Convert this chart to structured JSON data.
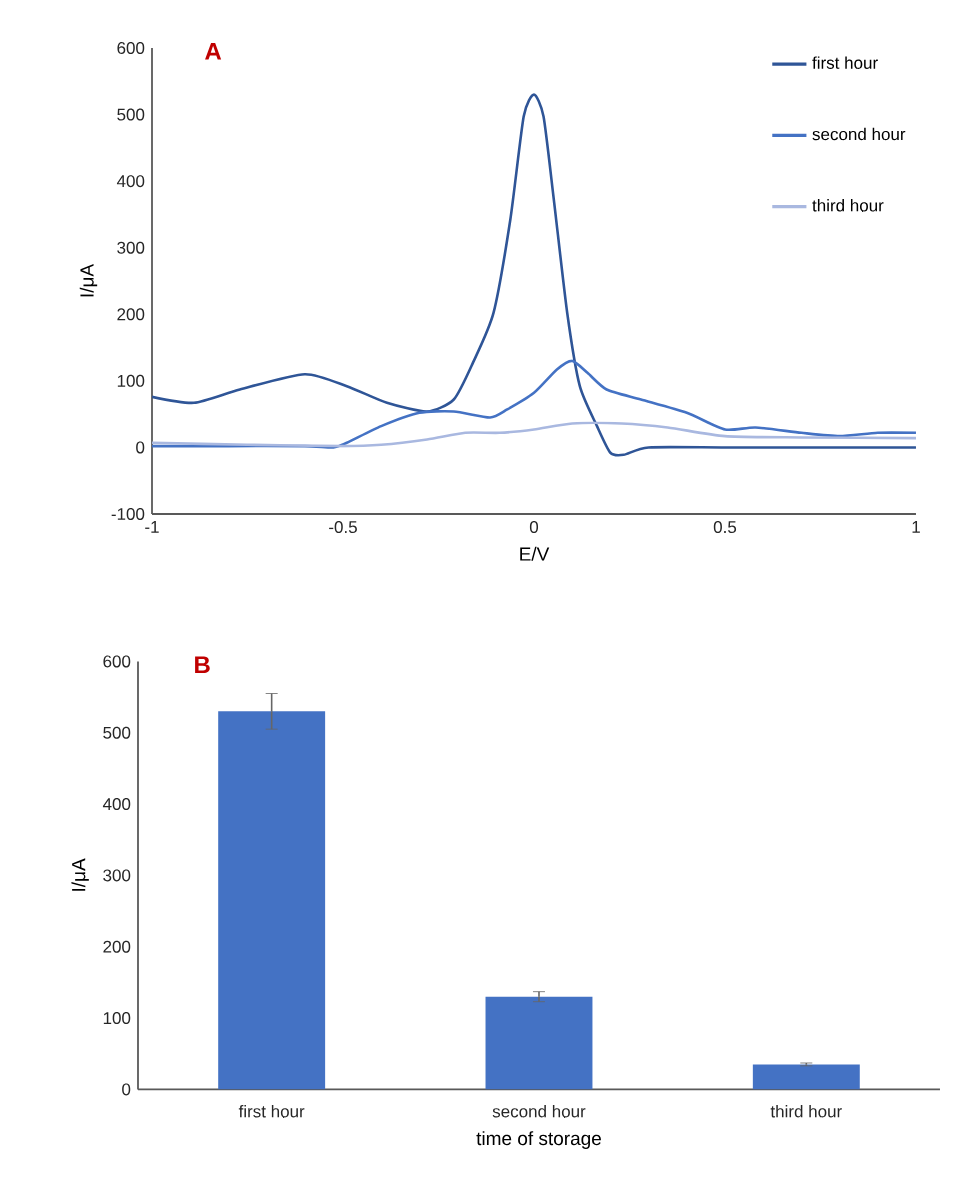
{
  "chart_data": [
    {
      "type": "line",
      "title": "A",
      "xlabel": "E/V",
      "ylabel": "I/μA",
      "xlim": [
        -1,
        1
      ],
      "ylim": [
        -100,
        600
      ],
      "xticks": [
        -1,
        -0.5,
        0,
        0.5,
        1
      ],
      "yticks": [
        -100,
        0,
        100,
        200,
        300,
        400,
        500,
        600
      ],
      "legend": "top right",
      "series": [
        {
          "name": "first hour",
          "color": "#2f5597",
          "x": [
            -1,
            -0.89,
            -0.77,
            -0.6,
            -0.49,
            -0.385,
            -0.28,
            -0.21,
            -0.16,
            -0.106,
            -0.062,
            -0.027,
            0,
            0.025,
            0.052,
            0.087,
            0.12,
            0.165,
            0.2,
            0.235,
            0.3,
            0.5,
            0.75,
            1
          ],
          "values": [
            76,
            67,
            87,
            110,
            92,
            67,
            54,
            72,
            127,
            202,
            342,
            497,
            530,
            497,
            372,
            202,
            92,
            32,
            -8,
            -11,
            0,
            0,
            0,
            0
          ]
        },
        {
          "name": "second hour",
          "color": "#4472c4",
          "x": [
            -1,
            -0.8,
            -0.6,
            -0.525,
            -0.49,
            -0.4,
            -0.3,
            -0.21,
            -0.115,
            -0.07,
            0,
            0.06,
            0.1,
            0.14,
            0.19,
            0.28,
            0.4,
            0.5,
            0.58,
            0.7,
            0.8,
            0.9,
            1
          ],
          "values": [
            2,
            2,
            2,
            0,
            7,
            32,
            52,
            54,
            45,
            57,
            82,
            117,
            130,
            112,
            87,
            72,
            52,
            27,
            30,
            22,
            17,
            22,
            22
          ]
        },
        {
          "name": "third hour",
          "color": "#a9b8e0",
          "x": [
            -1,
            -0.75,
            -0.5,
            -0.4,
            -0.28,
            -0.18,
            -0.09,
            0,
            0.1,
            0.23,
            0.35,
            0.5,
            0.7,
            1
          ],
          "values": [
            7,
            4,
            2,
            4,
            12,
            22,
            22,
            27,
            36,
            36,
            30,
            17,
            15,
            14
          ]
        }
      ]
    },
    {
      "type": "bar",
      "title": "B",
      "xlabel": "time of storage",
      "ylabel": "I/μA",
      "categories": [
        "first hour",
        "second hour",
        "third hour"
      ],
      "values": [
        530,
        130,
        35
      ],
      "errors": [
        25,
        7,
        2
      ],
      "color": "#4472c4",
      "ylim": [
        0,
        600
      ],
      "yticks": [
        0,
        100,
        200,
        300,
        400,
        500,
        600
      ]
    }
  ]
}
